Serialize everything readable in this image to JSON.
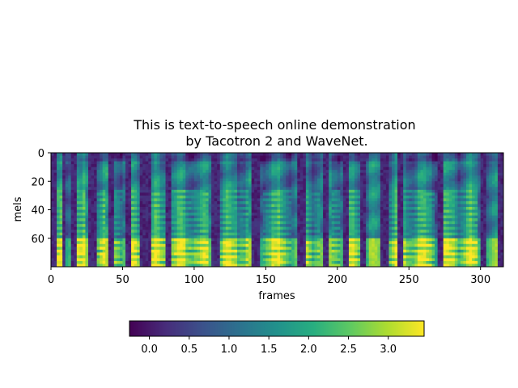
{
  "chart_data": {
    "type": "heatmap",
    "title": "This is text-to-speech online demonstration\nby Tacotron 2 and WaveNet.",
    "xlabel": "frames",
    "ylabel": "mels",
    "x_range": [
      0,
      316
    ],
    "y_range": [
      0,
      80
    ],
    "y_inverted": true,
    "x_ticks": [
      "0",
      "50",
      "100",
      "150",
      "200",
      "250",
      "300"
    ],
    "y_ticks": [
      "0",
      "20",
      "40",
      "60"
    ],
    "colormap": "viridis",
    "colorbar": {
      "orientation": "horizontal",
      "range": [
        -0.25,
        3.45
      ],
      "ticks": [
        "0.0",
        "0.5",
        "1.0",
        "1.5",
        "2.0",
        "2.5",
        "3.0"
      ]
    },
    "grid": false,
    "silence_columns": [
      [
        0,
        2
      ],
      [
        8,
        9
      ],
      [
        14,
        16
      ],
      [
        26,
        30
      ],
      [
        40,
        42
      ],
      [
        52,
        55
      ],
      [
        62,
        64
      ],
      [
        66,
        69
      ],
      [
        80,
        82
      ],
      [
        112,
        116
      ],
      [
        140,
        145
      ],
      [
        172,
        176
      ],
      [
        190,
        193
      ],
      [
        204,
        206
      ],
      [
        216,
        218
      ],
      [
        230,
        234
      ],
      [
        242,
        245
      ],
      [
        270,
        272
      ],
      [
        300,
        302
      ],
      [
        312,
        316
      ]
    ],
    "harmonic_segments": [
      [
        3,
        8
      ],
      [
        17,
        23
      ],
      [
        31,
        37
      ],
      [
        43,
        49
      ],
      [
        56,
        61
      ],
      [
        70,
        79
      ],
      [
        84,
        108
      ],
      [
        118,
        136
      ],
      [
        147,
        166
      ],
      [
        178,
        186
      ],
      [
        195,
        201
      ],
      [
        208,
        214
      ],
      [
        236,
        266
      ],
      [
        274,
        296
      ]
    ]
  }
}
